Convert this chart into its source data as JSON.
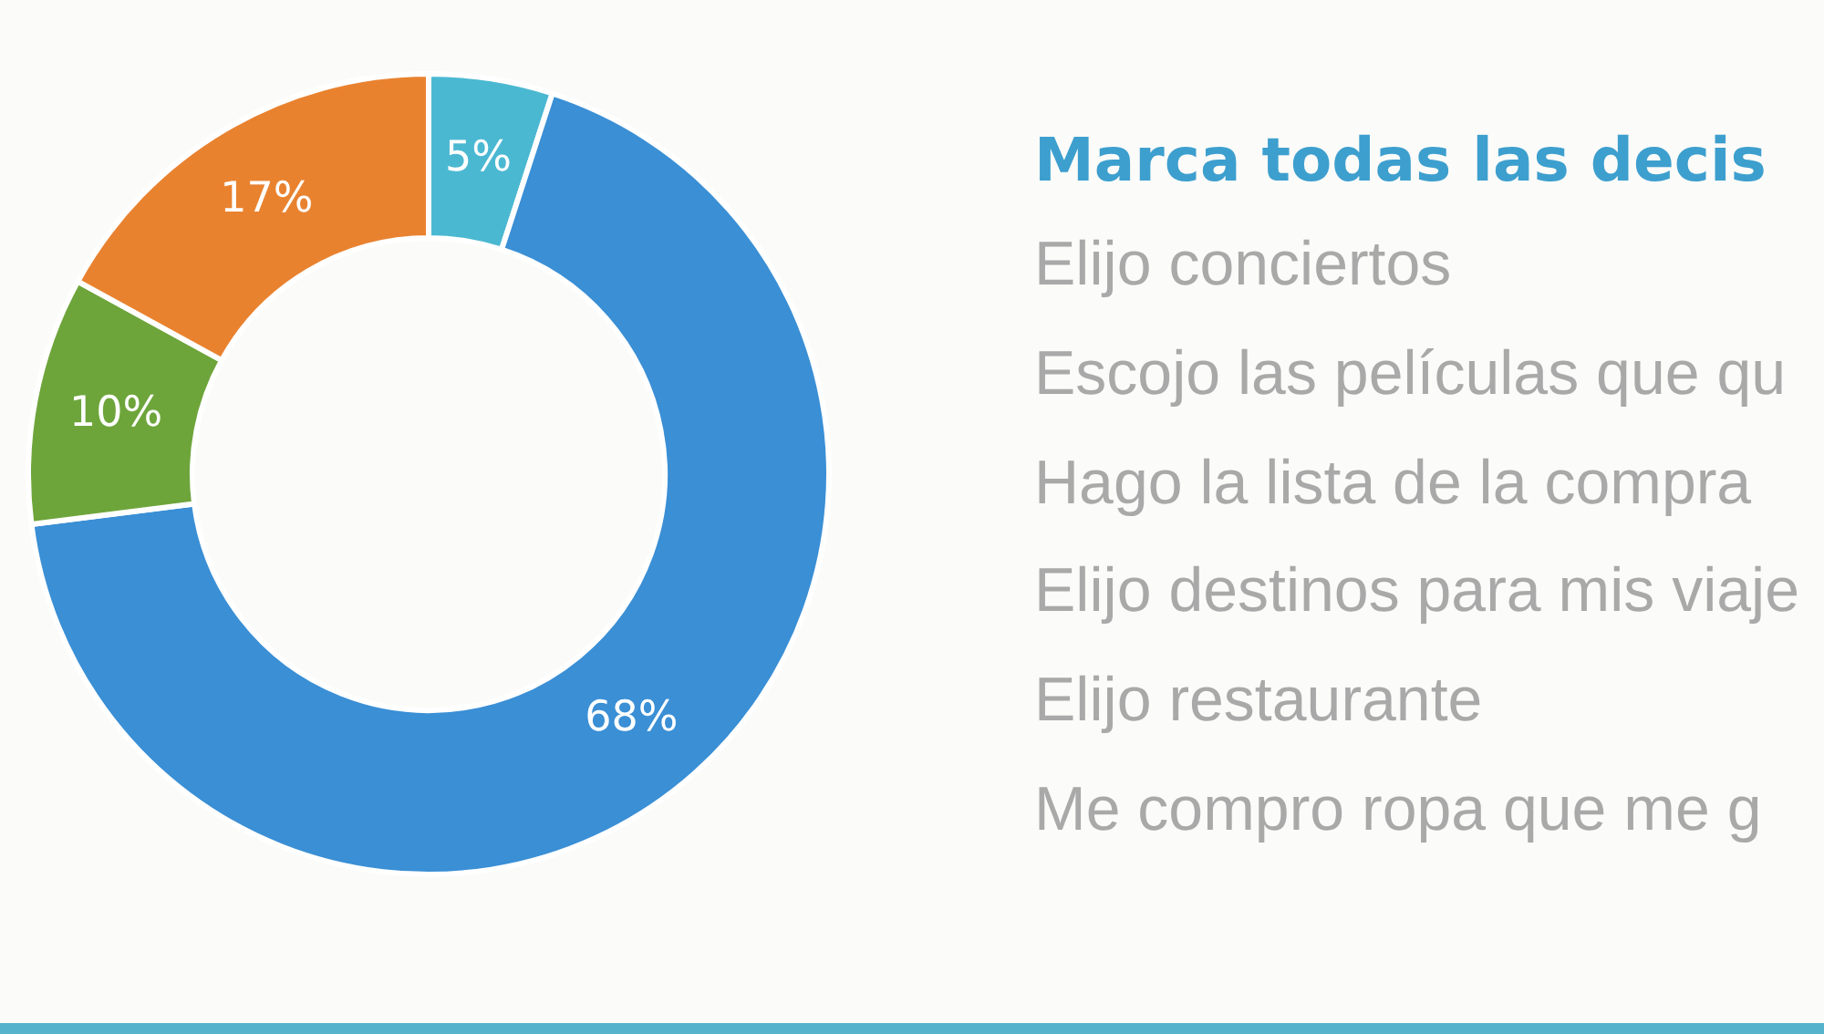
{
  "chart_data": [
    {
      "type": "donut",
      "categories": [
        null,
        null,
        null,
        null
      ],
      "values": [
        5,
        68,
        10,
        17
      ],
      "colors": [
        "#4bb8d2",
        "#3a8fd5",
        "#6ea53b",
        "#e9822f"
      ],
      "value_labels": [
        "5%",
        "68%",
        "10%",
        "17%"
      ]
    },
    {
      "type": "other",
      "title": "Marca todas las decis",
      "annotations": [
        "Elijo conciertos",
        "Escojo las películas que qu",
        "Hago la lista de la compra",
        "Elijo destinos para mis viaje",
        "Elijo restaurante",
        "Me compro ropa que me g"
      ]
    }
  ]
}
